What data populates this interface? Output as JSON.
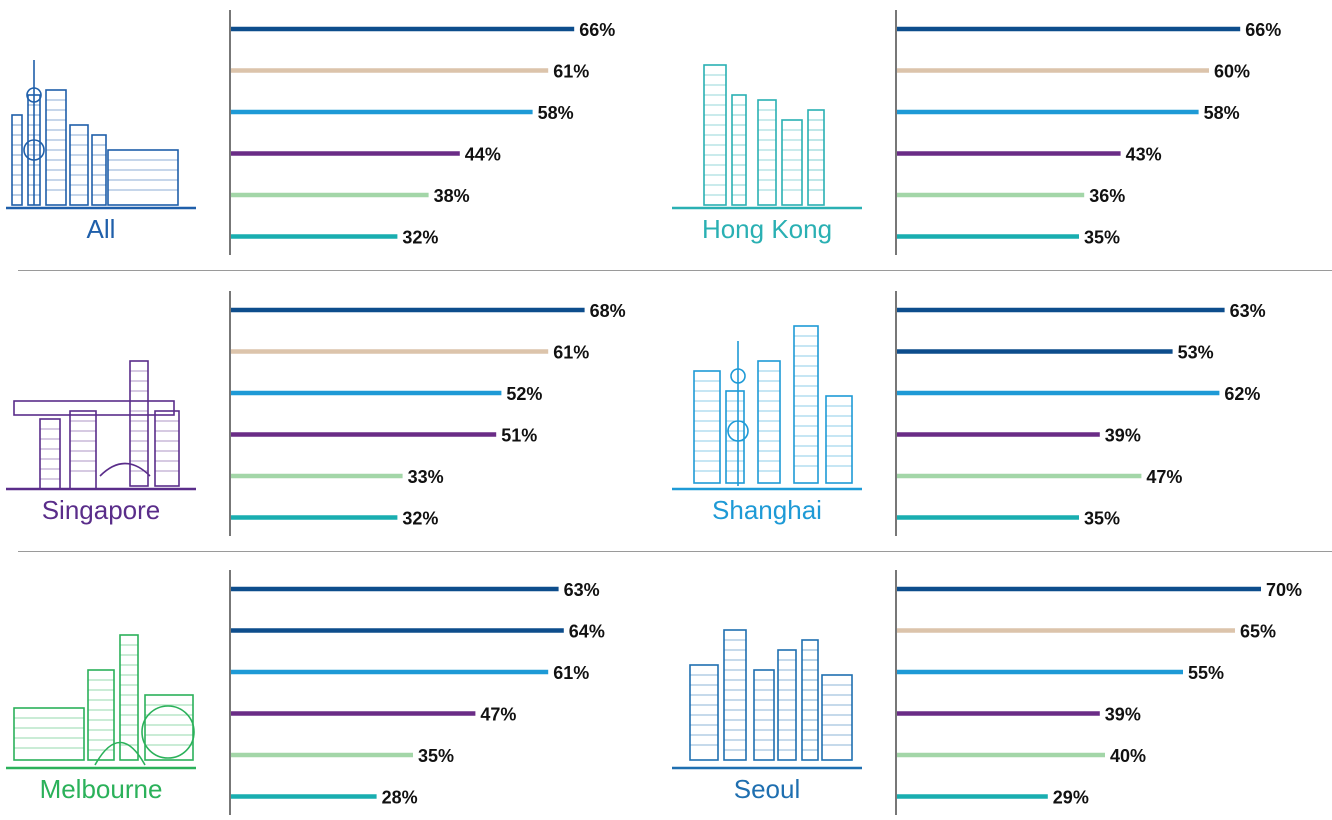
{
  "colors": {
    "series": [
      "#0d4d8c",
      "#dcc4ab",
      "#1e9ad6",
      "#6a2c86",
      "#a3d6a8",
      "#19aeb0"
    ],
    "axis": "#777777"
  },
  "chart_data": [
    {
      "type": "bar",
      "orientation": "horizontal",
      "city": "All",
      "label_color": "#1f5faa",
      "icon": "skyline-all-icon",
      "values": [
        66,
        61,
        58,
        44,
        38,
        32
      ],
      "labels": [
        "66%",
        "61%",
        "58%",
        "44%",
        "38%",
        "32%"
      ],
      "series_color_index": [
        0,
        1,
        2,
        3,
        4,
        5
      ]
    },
    {
      "type": "bar",
      "orientation": "horizontal",
      "city": "Hong Kong",
      "label_color": "#2ab0b3",
      "icon": "skyline-hong-kong-icon",
      "values": [
        66,
        60,
        58,
        43,
        36,
        35
      ],
      "labels": [
        "66%",
        "60%",
        "58%",
        "43%",
        "36%",
        "35%"
      ],
      "series_color_index": [
        0,
        1,
        2,
        3,
        4,
        5
      ]
    },
    {
      "type": "bar",
      "orientation": "horizontal",
      "city": "Singapore",
      "label_color": "#5a2d8a",
      "icon": "skyline-singapore-icon",
      "values": [
        68,
        61,
        52,
        51,
        33,
        32
      ],
      "labels": [
        "68%",
        "61%",
        "52%",
        "51%",
        "33%",
        "32%"
      ],
      "series_color_index": [
        0,
        1,
        2,
        3,
        4,
        5
      ]
    },
    {
      "type": "bar",
      "orientation": "horizontal",
      "city": "Shanghai",
      "label_color": "#1e9ad6",
      "icon": "skyline-shanghai-icon",
      "values": [
        63,
        53,
        62,
        39,
        47,
        35
      ],
      "labels": [
        "63%",
        "53%",
        "62%",
        "39%",
        "47%",
        "35%"
      ],
      "series_color_index": [
        0,
        0,
        2,
        3,
        4,
        5
      ]
    },
    {
      "type": "bar",
      "orientation": "horizontal",
      "city": "Melbourne",
      "label_color": "#2bb15a",
      "icon": "skyline-melbourne-icon",
      "values": [
        63,
        64,
        61,
        47,
        35,
        28
      ],
      "labels": [
        "63%",
        "64%",
        "61%",
        "47%",
        "35%",
        "28%"
      ],
      "series_color_index": [
        0,
        0,
        2,
        3,
        4,
        5
      ]
    },
    {
      "type": "bar",
      "orientation": "horizontal",
      "city": "Seoul",
      "label_color": "#1f6fb0",
      "icon": "skyline-seoul-icon",
      "values": [
        70,
        65,
        55,
        39,
        40,
        29
      ],
      "labels": [
        "70%",
        "65%",
        "55%",
        "39%",
        "40%",
        "29%"
      ],
      "series_color_index": [
        0,
        1,
        2,
        3,
        4,
        5
      ]
    }
  ]
}
